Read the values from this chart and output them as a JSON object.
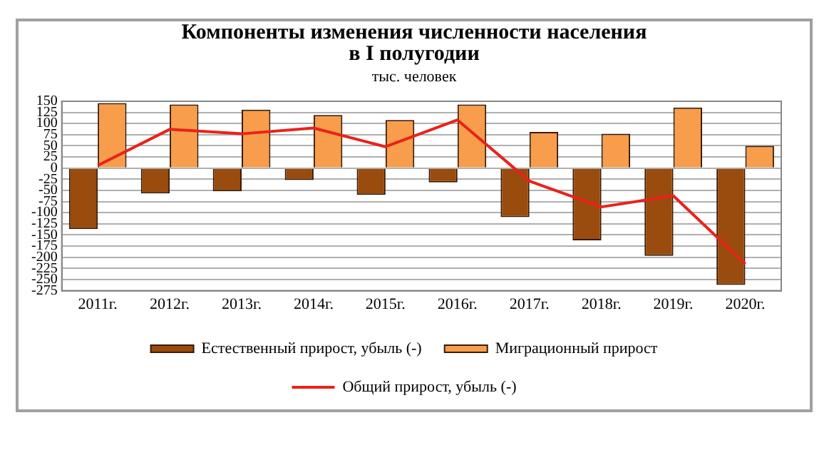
{
  "chart_data": {
    "type": "bar",
    "title": "Компоненты изменения численности населения\nв I полугодии",
    "subtitle": "тыс. человек",
    "categories": [
      "2011г.",
      "2012г.",
      "2013г.",
      "2014г.",
      "2015г.",
      "2016г.",
      "2017г.",
      "2018г.",
      "2019г.",
      "2020г."
    ],
    "series": [
      {
        "name": "Естественный прирост, убыль (-)",
        "color": "#994c0d",
        "values": [
          -137,
          -57,
          -52,
          -27,
          -60,
          -32,
          -110,
          -162,
          -197,
          -262
        ]
      },
      {
        "name": "Миграционный прирост",
        "color": "#f79d4b",
        "values": [
          146,
          143,
          131,
          119,
          108,
          143,
          81,
          77,
          136,
          50
        ]
      },
      {
        "name": "Общий прирост, убыль (-)",
        "type": "line",
        "color": "#e8231c",
        "values": [
          6,
          87,
          77,
          90,
          48,
          108,
          -29,
          -87,
          -62,
          -215
        ]
      }
    ],
    "ylim": [
      -275,
      150
    ],
    "yticks": [
      -275,
      -250,
      -225,
      -200,
      -175,
      -150,
      -125,
      -100,
      -75,
      -50,
      -25,
      0,
      25,
      50,
      75,
      100,
      125,
      150
    ],
    "grid": "y",
    "legend": "bottom",
    "marker": "none"
  }
}
